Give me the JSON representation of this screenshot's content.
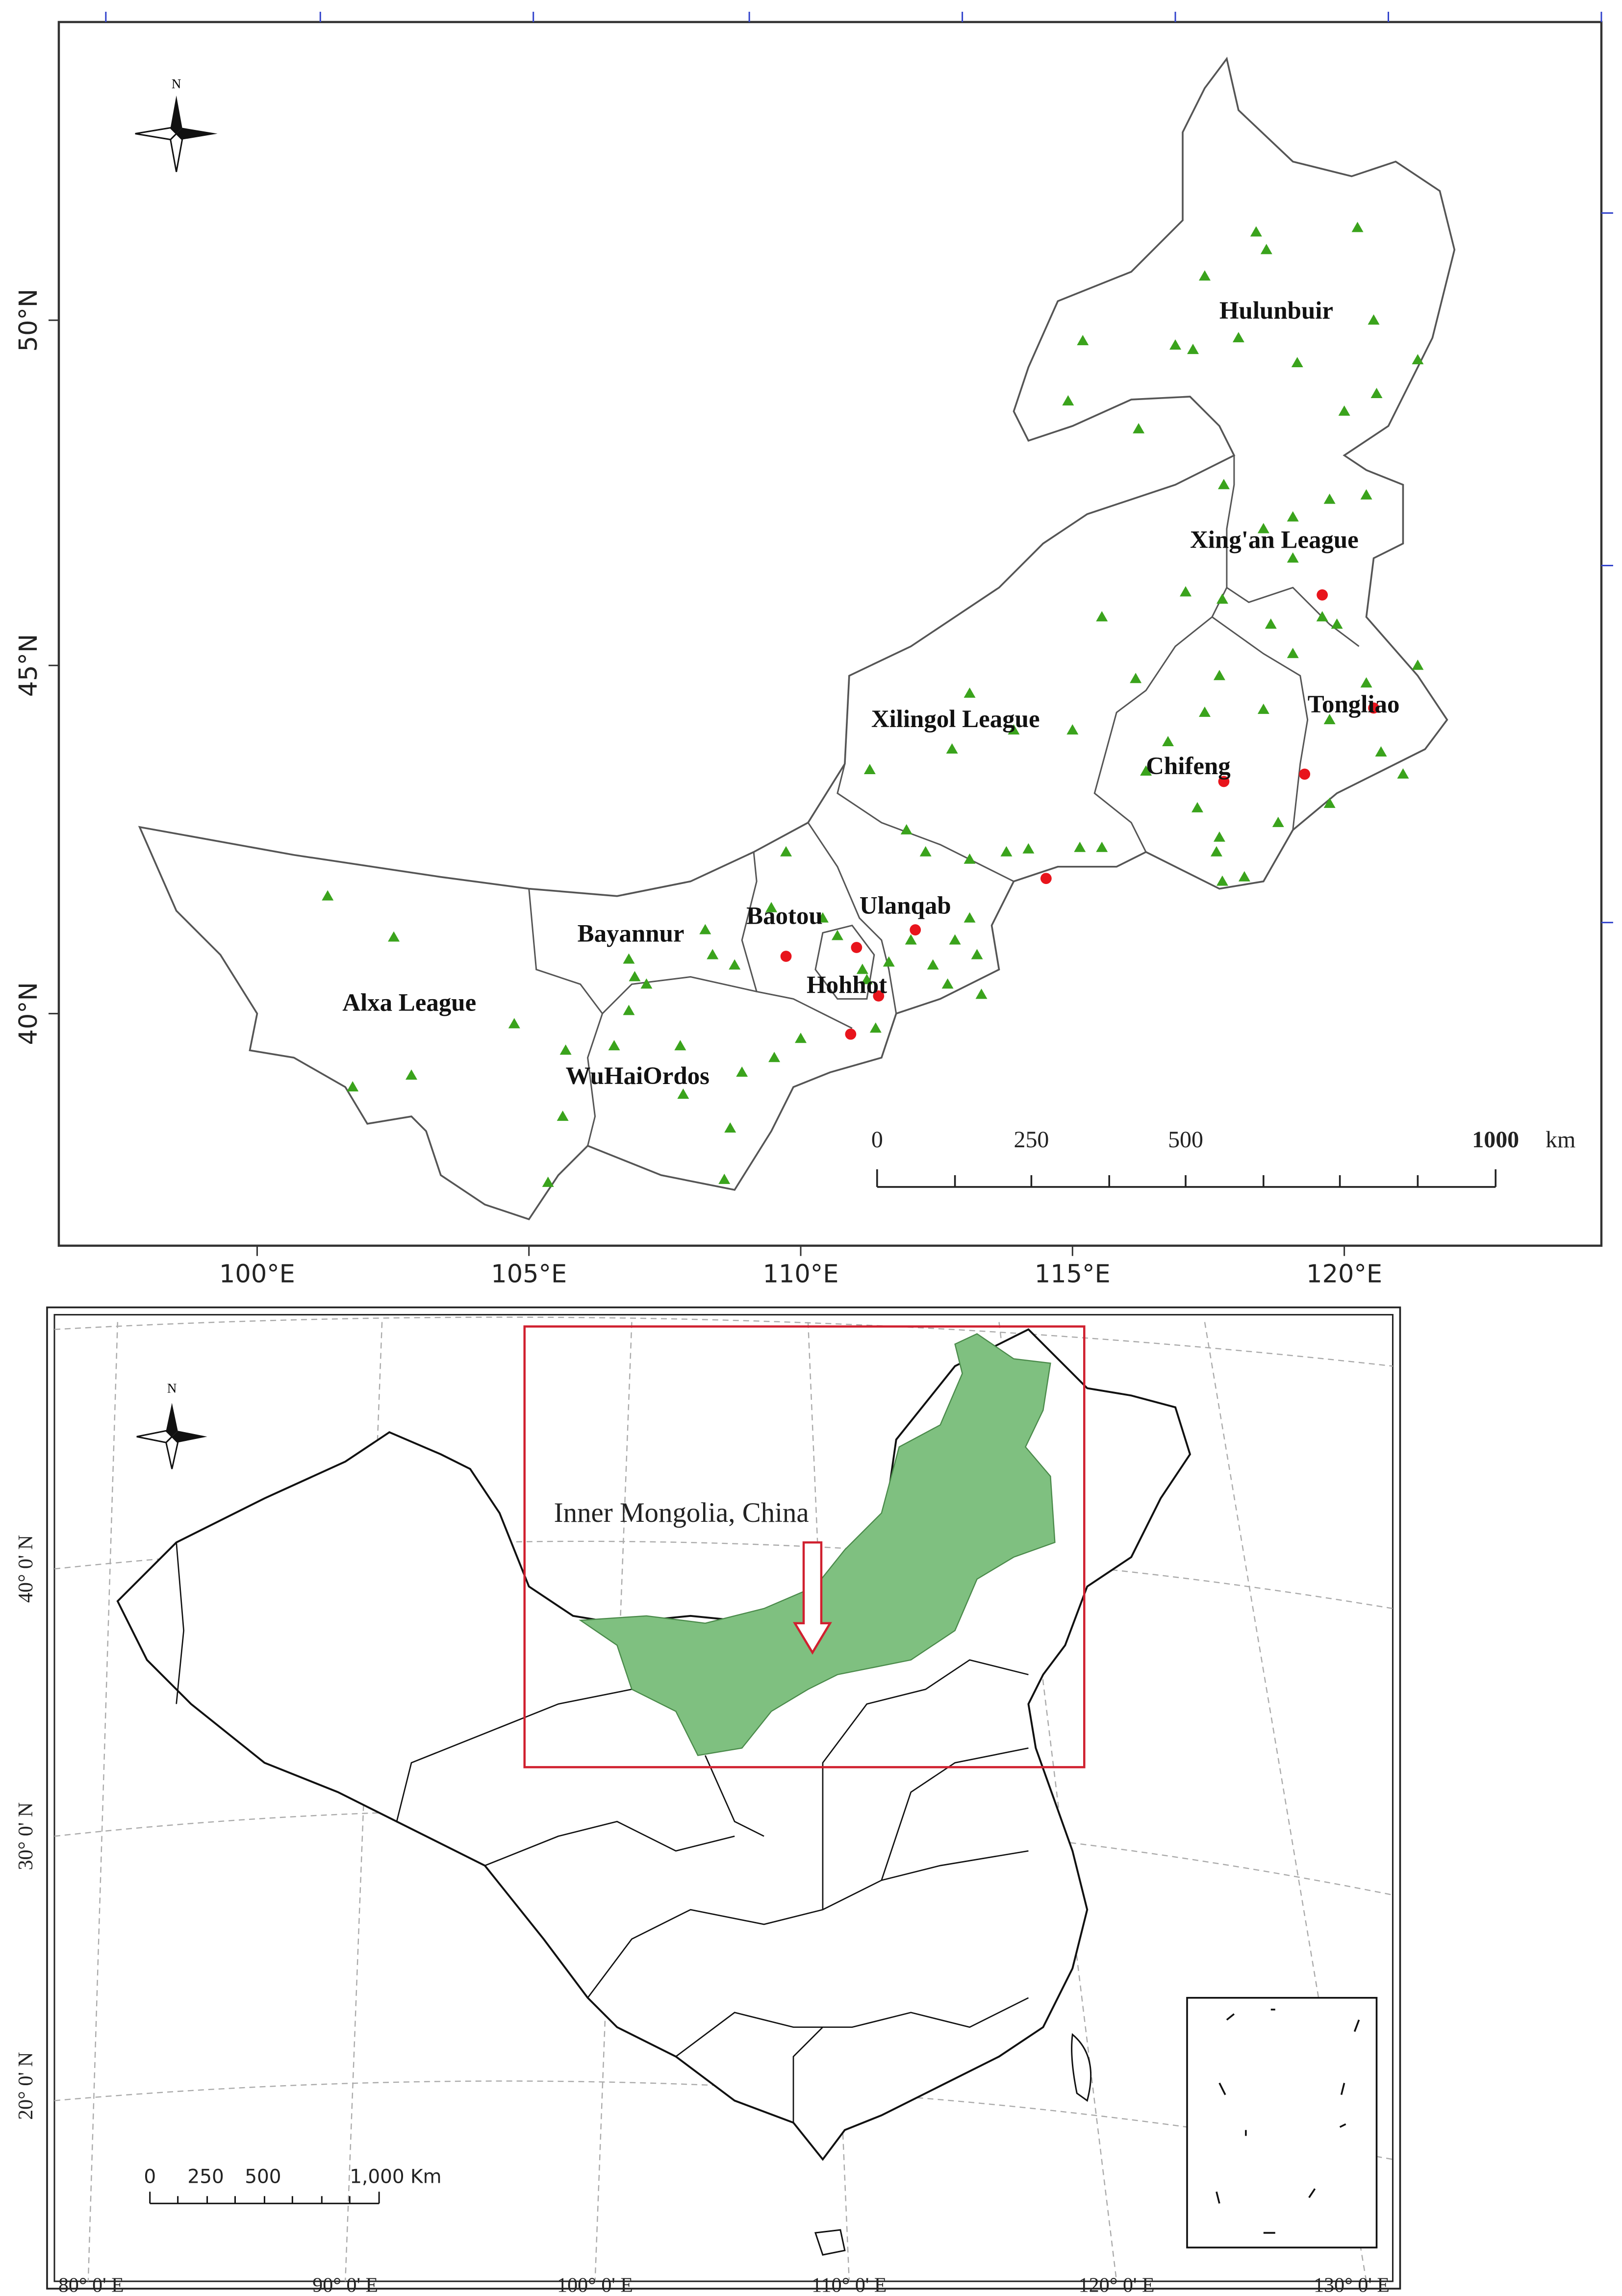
{
  "top_map": {
    "north": "N",
    "longitude_labels": [
      "100°E",
      "105°E",
      "110°E",
      "115°E",
      "120°E"
    ],
    "latitude_labels": [
      "40°N",
      "45°N",
      "50°N"
    ],
    "regions": [
      "Hulunbuir",
      "Xing'an League",
      "Tongliao",
      "Chifeng",
      "Xilingol League",
      "Ulanqab",
      "Baotou",
      "Hohhot",
      "Bayannur",
      "Alxa League",
      "WuHaiOrdos"
    ],
    "scale_bar": {
      "labels": [
        "0",
        "250",
        "500",
        "1000"
      ],
      "unit": "km"
    }
  },
  "bottom_map": {
    "north": "N",
    "annotation": "Inner Mongolia, China",
    "latitude_labels": [
      "20° 0' N",
      "30° 0' N",
      "40° 0' N"
    ],
    "longitude_labels": [
      "80° 0' E",
      "90° 0' E",
      "100° 0' E",
      "110° 0' E",
      "120° 0' E",
      "130° 0' E"
    ],
    "scale_bar": {
      "labels": [
        "0",
        "250",
        "500",
        "1,000 Km"
      ]
    }
  }
}
